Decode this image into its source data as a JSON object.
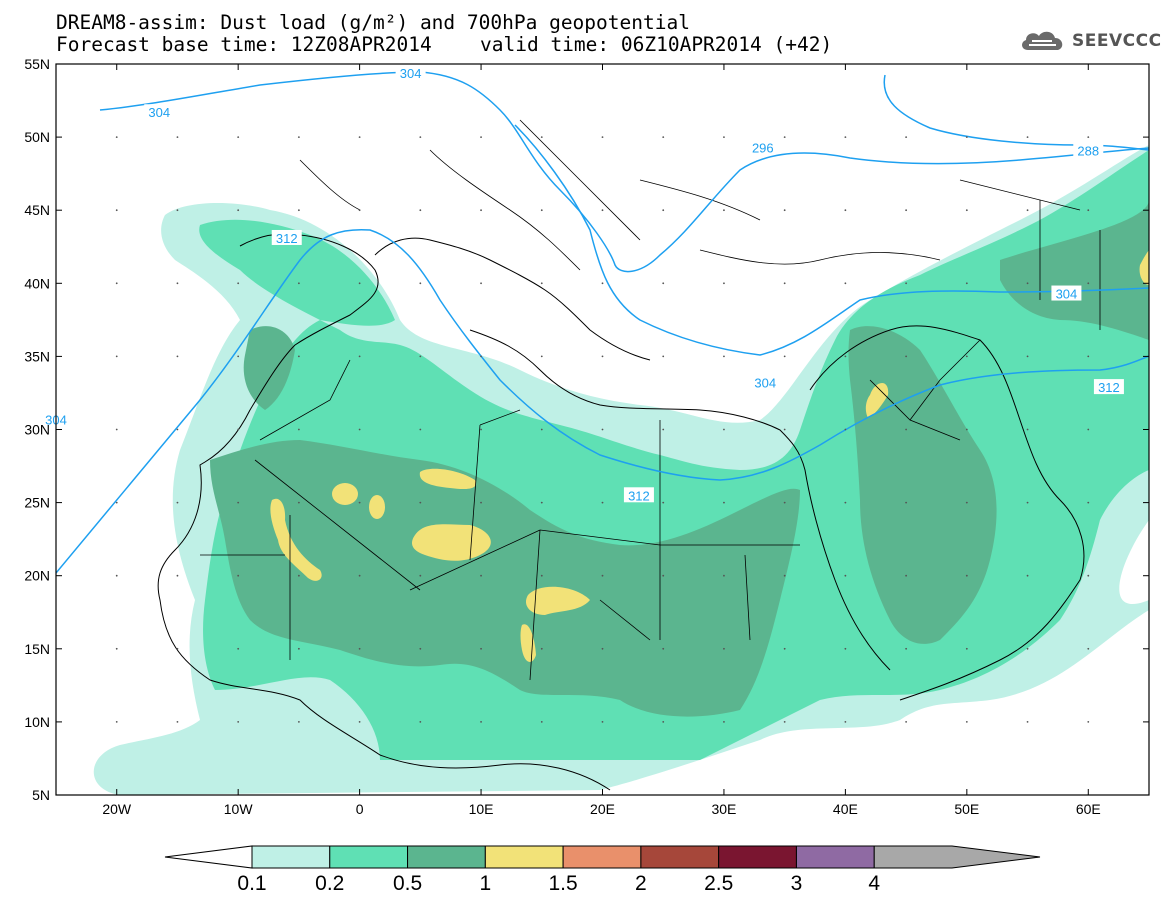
{
  "header": {
    "title_line1": "DREAM8-assim: Dust load (g/m²) and 700hPa geopotential",
    "title_line2a": "Forecast base time: 12Z08APR2014",
    "title_line2b": "valid time: 06Z10APR2014 (+42)"
  },
  "logo": {
    "text": "SEEVCCC",
    "icon": "cloud-icon"
  },
  "map": {
    "lon_ticks": [
      {
        "lon": -20,
        "label": "20W"
      },
      {
        "lon": -10,
        "label": "10W"
      },
      {
        "lon": 0,
        "label": "0"
      },
      {
        "lon": 10,
        "label": "10E"
      },
      {
        "lon": 20,
        "label": "20E"
      },
      {
        "lon": 30,
        "label": "30E"
      },
      {
        "lon": 40,
        "label": "40E"
      },
      {
        "lon": 50,
        "label": "50E"
      },
      {
        "lon": 60,
        "label": "60E"
      }
    ],
    "lat_ticks": [
      {
        "lat": 55,
        "label": "55N"
      },
      {
        "lat": 50,
        "label": "50N"
      },
      {
        "lat": 45,
        "label": "45N"
      },
      {
        "lat": 40,
        "label": "40N"
      },
      {
        "lat": 35,
        "label": "35N"
      },
      {
        "lat": 30,
        "label": "30N"
      },
      {
        "lat": 25,
        "label": "25N"
      },
      {
        "lat": 20,
        "label": "20N"
      },
      {
        "lat": 15,
        "label": "15N"
      },
      {
        "lat": 10,
        "label": "10N"
      },
      {
        "lat": 5,
        "label": "5N"
      }
    ],
    "contour_labels": [
      {
        "text": "304",
        "lon": -16.5,
        "lat": 51.7
      },
      {
        "text": "304",
        "lon": 4.2,
        "lat": 54.4
      },
      {
        "text": "296",
        "lon": 33.2,
        "lat": 49.3
      },
      {
        "text": "288",
        "lon": 60.0,
        "lat": 49.1
      },
      {
        "text": "312",
        "lon": -6.0,
        "lat": 43.1
      },
      {
        "text": "304",
        "lon": 58.2,
        "lat": 39.3
      },
      {
        "text": "304",
        "lon": 33.4,
        "lat": 33.2
      },
      {
        "text": "312",
        "lon": 61.7,
        "lat": 32.9
      },
      {
        "text": "312",
        "lon": 23.0,
        "lat": 25.5
      },
      {
        "text": "304",
        "lon": -25.0,
        "lat": 30.7
      }
    ]
  },
  "colorbar": {
    "labels": [
      "0.1",
      "0.2",
      "0.5",
      "1",
      "1.5",
      "2",
      "2.5",
      "3",
      "4"
    ],
    "colors": [
      "#bff0e6",
      "#5fe0b4",
      "#5bb58f",
      "#f2e278",
      "#e9906b",
      "#a6473a",
      "#7a1530",
      "#8f6aa3",
      "#a8a8a8"
    ]
  }
}
